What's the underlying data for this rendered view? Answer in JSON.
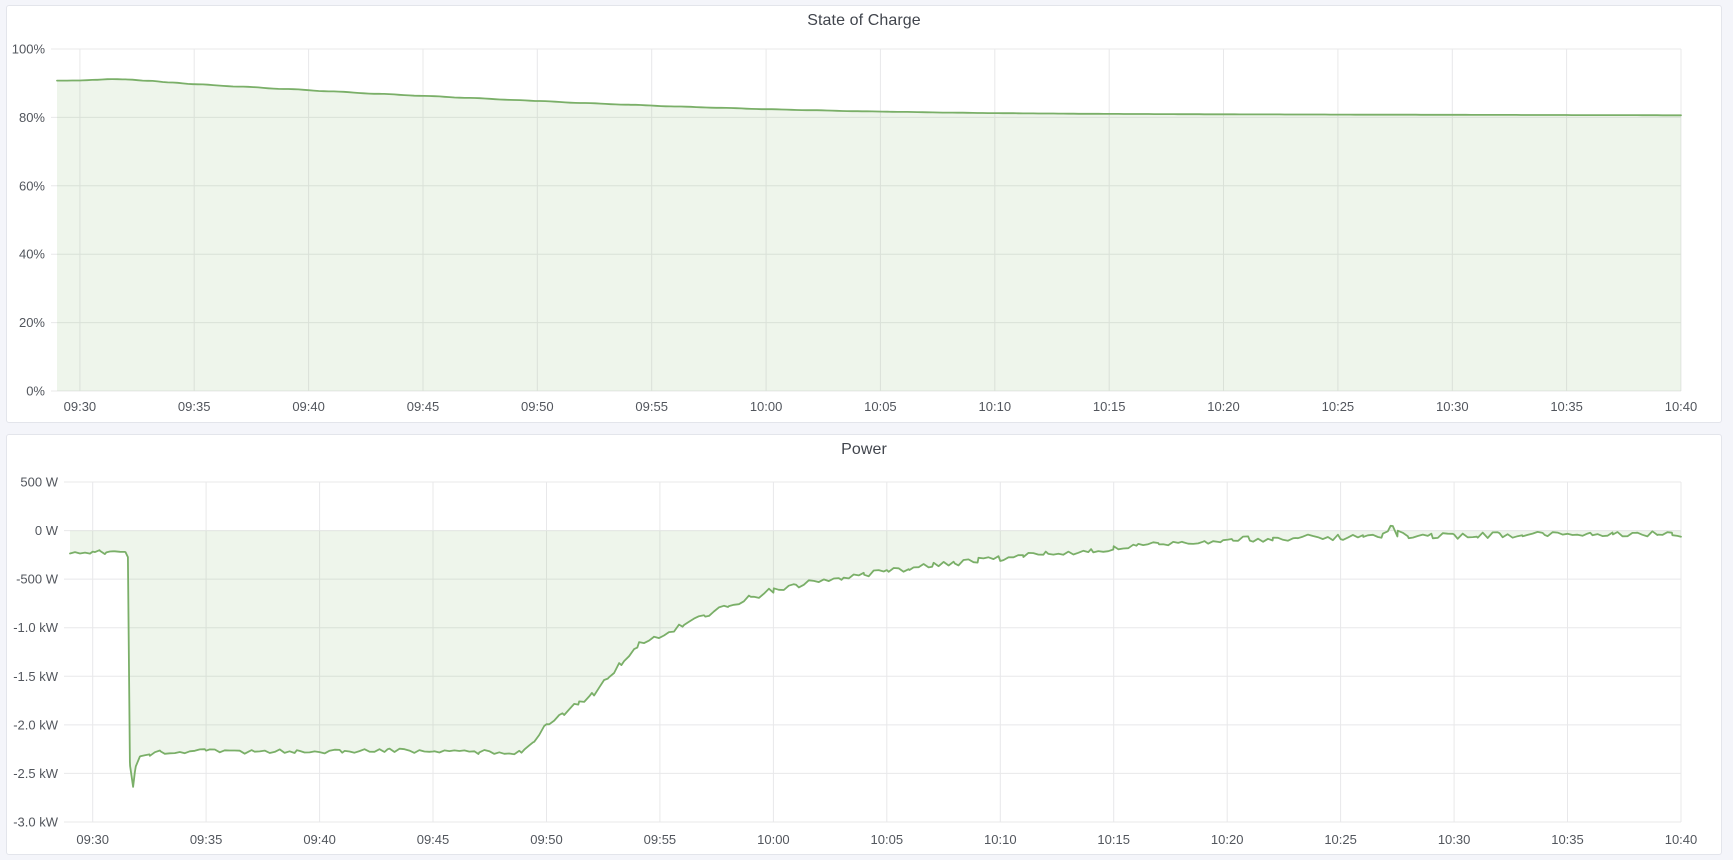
{
  "page": {
    "background": "#f4f5fa"
  },
  "chart_data": [
    {
      "type": "area",
      "title": "State of Charge",
      "xlabel": "",
      "ylabel": "",
      "unit": "%",
      "legend": "none",
      "grid": true,
      "xlim_minutes_from_0930": [
        -1,
        70
      ],
      "ylim": [
        0,
        100
      ],
      "x_ticks": [
        {
          "t": 0,
          "label": "09:30"
        },
        {
          "t": 5,
          "label": "09:35"
        },
        {
          "t": 10,
          "label": "09:40"
        },
        {
          "t": 15,
          "label": "09:45"
        },
        {
          "t": 20,
          "label": "09:50"
        },
        {
          "t": 25,
          "label": "09:55"
        },
        {
          "t": 30,
          "label": "10:00"
        },
        {
          "t": 35,
          "label": "10:05"
        },
        {
          "t": 40,
          "label": "10:10"
        },
        {
          "t": 45,
          "label": "10:15"
        },
        {
          "t": 50,
          "label": "10:20"
        },
        {
          "t": 55,
          "label": "10:25"
        },
        {
          "t": 60,
          "label": "10:30"
        },
        {
          "t": 65,
          "label": "10:35"
        },
        {
          "t": 70,
          "label": "10:40"
        }
      ],
      "y_ticks": [
        {
          "v": 100,
          "label": "100%"
        },
        {
          "v": 80,
          "label": "80%"
        },
        {
          "v": 60,
          "label": "60%"
        },
        {
          "v": 40,
          "label": "40%"
        },
        {
          "v": 20,
          "label": "20%"
        },
        {
          "v": 0,
          "label": "0%"
        }
      ],
      "colors": {
        "line": "#7aaf68",
        "fill": "rgba(122,175,104,0.13)",
        "grid": "#e8e8ea",
        "text": "#52565d"
      },
      "series": [
        {
          "name": "State of Charge",
          "fill_to_value": 0,
          "noise_profile_t_amp": [
            [
              -1,
              0
            ],
            [
              70,
              0
            ]
          ],
          "points_t_value": [
            [
              -1,
              90.75
            ],
            [
              0,
              90.8
            ],
            [
              0.7,
              91.0
            ],
            [
              1.4,
              91.2
            ],
            [
              2,
              91.1
            ],
            [
              3,
              90.7
            ],
            [
              4,
              90.2
            ],
            [
              5,
              89.7
            ],
            [
              7,
              89.0
            ],
            [
              9,
              88.3
            ],
            [
              11,
              87.6
            ],
            [
              13,
              86.9
            ],
            [
              15,
              86.3
            ],
            [
              17,
              85.7
            ],
            [
              19,
              85.1
            ],
            [
              20,
              84.8
            ],
            [
              22,
              84.2
            ],
            [
              24,
              83.7
            ],
            [
              26,
              83.2
            ],
            [
              28,
              82.8
            ],
            [
              30,
              82.4
            ],
            [
              32,
              82.1
            ],
            [
              34,
              81.8
            ],
            [
              36,
              81.6
            ],
            [
              38,
              81.4
            ],
            [
              40,
              81.25
            ],
            [
              42,
              81.15
            ],
            [
              44,
              81.05
            ],
            [
              46,
              81.0
            ],
            [
              48,
              80.95
            ],
            [
              50,
              80.9
            ],
            [
              52,
              80.87
            ],
            [
              54,
              80.84
            ],
            [
              56,
              80.8
            ],
            [
              58,
              80.78
            ],
            [
              60,
              80.75
            ],
            [
              62,
              80.73
            ],
            [
              64,
              80.7
            ],
            [
              66,
              80.68
            ],
            [
              68,
              80.66
            ],
            [
              70,
              80.6
            ]
          ]
        }
      ]
    },
    {
      "type": "area",
      "title": "Power",
      "xlabel": "",
      "ylabel": "",
      "unit": "W",
      "legend": "none",
      "grid": true,
      "xlim_minutes_from_0930": [
        -1,
        70
      ],
      "ylim": [
        -3000,
        500
      ],
      "x_ticks": [
        {
          "t": 0,
          "label": "09:30"
        },
        {
          "t": 5,
          "label": "09:35"
        },
        {
          "t": 10,
          "label": "09:40"
        },
        {
          "t": 15,
          "label": "09:45"
        },
        {
          "t": 20,
          "label": "09:50"
        },
        {
          "t": 25,
          "label": "09:55"
        },
        {
          "t": 30,
          "label": "10:00"
        },
        {
          "t": 35,
          "label": "10:05"
        },
        {
          "t": 40,
          "label": "10:10"
        },
        {
          "t": 45,
          "label": "10:15"
        },
        {
          "t": 50,
          "label": "10:20"
        },
        {
          "t": 55,
          "label": "10:25"
        },
        {
          "t": 60,
          "label": "10:30"
        },
        {
          "t": 65,
          "label": "10:35"
        },
        {
          "t": 70,
          "label": "10:40"
        }
      ],
      "y_ticks": [
        {
          "v": 500,
          "label": "500 W"
        },
        {
          "v": 0,
          "label": "0 W"
        },
        {
          "v": -500,
          "label": "-500 W"
        },
        {
          "v": -1000,
          "label": "-1.0 kW"
        },
        {
          "v": -1500,
          "label": "-1.5 kW"
        },
        {
          "v": -2000,
          "label": "-2.0 kW"
        },
        {
          "v": -2500,
          "label": "-2.5 kW"
        },
        {
          "v": -3000,
          "label": "-3.0 kW"
        }
      ],
      "colors": {
        "line": "#7aaf68",
        "fill": "rgba(122,175,104,0.13)",
        "grid": "#e8e8ea",
        "text": "#52565d"
      },
      "series": [
        {
          "name": "Power",
          "fill_to_value": 0,
          "noise_profile_t_amp": [
            [
              -1,
              14
            ],
            [
              1.5,
              14
            ],
            [
              2.2,
              22
            ],
            [
              18.6,
              22
            ],
            [
              19.2,
              18
            ],
            [
              24,
              30
            ],
            [
              40,
              30
            ],
            [
              49.6,
              25
            ],
            [
              50.2,
              32
            ],
            [
              70,
              30
            ]
          ],
          "points_t_value": [
            [
              -1,
              -225
            ],
            [
              0,
              -225
            ],
            [
              0.3,
              -200
            ],
            [
              0.6,
              -235
            ],
            [
              0.9,
              -210
            ],
            [
              1.2,
              -230
            ],
            [
              1.45,
              -215
            ],
            [
              1.55,
              -260
            ],
            [
              1.65,
              -2430
            ],
            [
              1.78,
              -2630
            ],
            [
              1.9,
              -2420
            ],
            [
              2.1,
              -2340
            ],
            [
              2.5,
              -2300
            ],
            [
              3,
              -2280
            ],
            [
              5,
              -2270
            ],
            [
              7,
              -2280
            ],
            [
              9,
              -2270
            ],
            [
              11,
              -2275
            ],
            [
              13,
              -2265
            ],
            [
              15,
              -2272
            ],
            [
              17,
              -2278
            ],
            [
              18.5,
              -2285
            ],
            [
              18.9,
              -2280
            ],
            [
              19.4,
              -2170
            ],
            [
              20,
              -2010
            ],
            [
              20.7,
              -1890
            ],
            [
              21.4,
              -1780
            ],
            [
              22,
              -1680
            ],
            [
              22.7,
              -1540
            ],
            [
              23.3,
              -1380
            ],
            [
              24,
              -1180
            ],
            [
              24.7,
              -1110
            ],
            [
              25.4,
              -1050
            ],
            [
              26,
              -980
            ],
            [
              27,
              -870
            ],
            [
              28,
              -775
            ],
            [
              29,
              -690
            ],
            [
              30,
              -620
            ],
            [
              31,
              -565
            ],
            [
              32,
              -520
            ],
            [
              33,
              -480
            ],
            [
              34,
              -450
            ],
            [
              35,
              -420
            ],
            [
              36,
              -395
            ],
            [
              37,
              -360
            ],
            [
              38,
              -330
            ],
            [
              39,
              -310
            ],
            [
              40,
              -290
            ],
            [
              41,
              -260
            ],
            [
              42,
              -235
            ],
            [
              43,
              -220
            ],
            [
              44,
              -205
            ],
            [
              45,
              -185
            ],
            [
              46,
              -160
            ],
            [
              47,
              -140
            ],
            [
              48,
              -125
            ],
            [
              49,
              -112
            ],
            [
              49.7,
              -105
            ],
            [
              50.2,
              -80
            ],
            [
              51,
              -90
            ],
            [
              52,
              -85
            ],
            [
              53,
              -75
            ],
            [
              54,
              -70
            ],
            [
              55,
              -72
            ],
            [
              56,
              -65
            ],
            [
              56.8,
              -50
            ],
            [
              57.2,
              40
            ],
            [
              57.5,
              -30
            ],
            [
              58,
              -55
            ],
            [
              59,
              -60
            ],
            [
              60,
              -55
            ],
            [
              61,
              -50
            ],
            [
              62,
              -45
            ],
            [
              63,
              -55
            ],
            [
              64,
              -40
            ],
            [
              65,
              -45
            ],
            [
              66,
              -35
            ],
            [
              67,
              -45
            ],
            [
              68,
              -40
            ],
            [
              69,
              -30
            ],
            [
              69.6,
              -20
            ],
            [
              70,
              -60
            ]
          ]
        }
      ]
    }
  ]
}
